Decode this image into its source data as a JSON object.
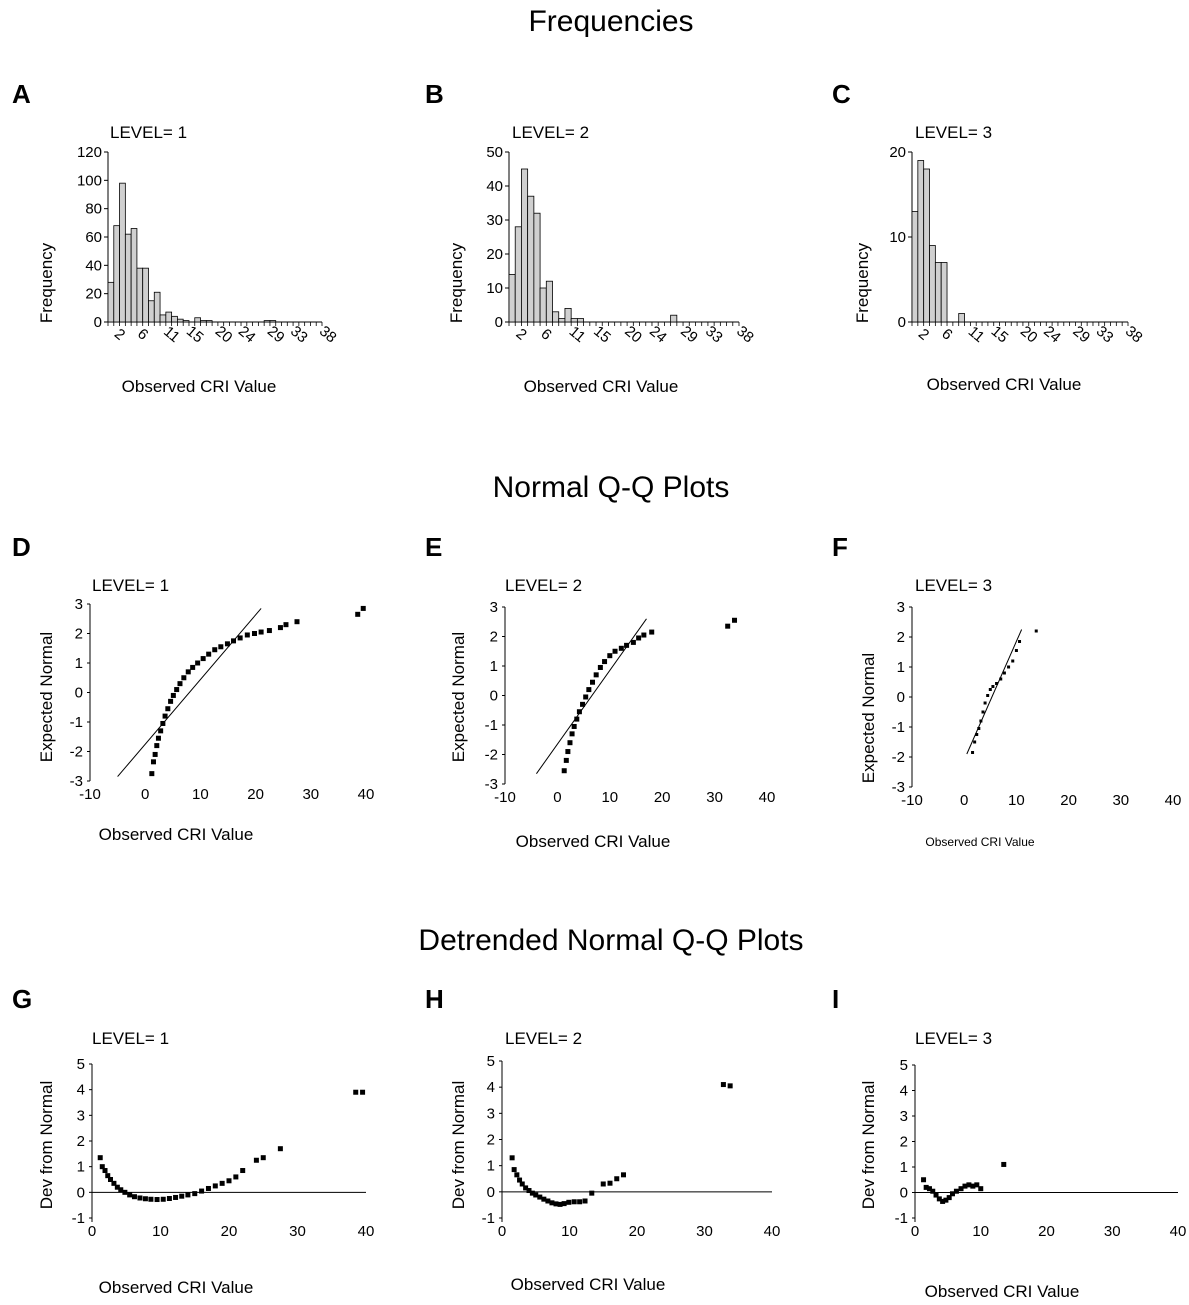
{
  "sections": [
    {
      "title": "Frequencies"
    },
    {
      "title": "Normal Q-Q Plots"
    },
    {
      "title": "Detrended Normal Q-Q Plots"
    }
  ],
  "chart_data": [
    {
      "panel": "A",
      "type": "bar",
      "level_label": "LEVEL= 1",
      "xlabel": "Observed CRI Value",
      "ylabel": "Frequency",
      "x_tick_labels": [
        "2",
        "6",
        "11",
        "15",
        "20",
        "24",
        "29",
        "33",
        "38"
      ],
      "y_ticks": [
        0,
        20,
        40,
        60,
        80,
        100,
        120
      ],
      "ylim": [
        0,
        120
      ],
      "values": [
        28,
        68,
        98,
        62,
        66,
        38,
        38,
        15,
        21,
        5,
        7,
        4,
        2,
        1,
        0,
        3,
        1,
        1,
        0,
        0,
        0,
        0,
        0,
        0,
        0,
        0,
        0,
        1,
        1
      ]
    },
    {
      "panel": "B",
      "type": "bar",
      "level_label": "LEVEL= 2",
      "xlabel": "Observed CRI Value",
      "ylabel": "Frequency",
      "x_tick_labels": [
        "2",
        "6",
        "11",
        "15",
        "20",
        "24",
        "29",
        "33",
        "38"
      ],
      "y_ticks": [
        0,
        10,
        20,
        30,
        40,
        50
      ],
      "ylim": [
        0,
        50
      ],
      "values": [
        14,
        28,
        45,
        37,
        32,
        10,
        12,
        3,
        1,
        4,
        1,
        1,
        0,
        0,
        0,
        0,
        0,
        0,
        0,
        0,
        0,
        0,
        0,
        0,
        0,
        0,
        2,
        0,
        0,
        0,
        0,
        0,
        0
      ]
    },
    {
      "panel": "C",
      "type": "bar",
      "level_label": "LEVEL= 3",
      "xlabel": "Observed CRI Value",
      "ylabel": "Frequency",
      "x_tick_labels": [
        "2",
        "6",
        "11",
        "15",
        "20",
        "24",
        "29",
        "33",
        "38"
      ],
      "y_ticks": [
        0,
        10,
        20
      ],
      "ylim": [
        0,
        20
      ],
      "values": [
        13,
        19,
        18,
        9,
        7,
        7,
        0,
        0,
        1,
        0,
        0,
        0,
        0,
        0,
        0,
        0,
        0,
        0,
        0,
        0,
        0,
        0,
        0,
        0,
        0,
        0,
        0,
        0,
        0,
        0,
        0,
        0,
        0
      ]
    },
    {
      "panel": "D",
      "type": "scatter",
      "level_label": "LEVEL= 1",
      "xlabel": "Observed CRI Value",
      "ylabel": "Expected Normal",
      "x_ticks": [
        -10,
        0,
        10,
        20,
        30,
        40
      ],
      "y_ticks": [
        -3,
        -2,
        -1,
        0,
        1,
        2,
        3
      ],
      "xlim": [
        -10,
        40
      ],
      "ylim": [
        -3,
        3
      ],
      "reference_line": [
        [
          -5,
          -2.85
        ],
        [
          21,
          2.85
        ]
      ],
      "points": [
        [
          1.2,
          -2.75
        ],
        [
          1.5,
          -2.35
        ],
        [
          1.8,
          -2.1
        ],
        [
          2.1,
          -1.8
        ],
        [
          2.4,
          -1.55
        ],
        [
          2.8,
          -1.3
        ],
        [
          3.2,
          -1.05
        ],
        [
          3.6,
          -0.8
        ],
        [
          4.1,
          -0.55
        ],
        [
          4.6,
          -0.3
        ],
        [
          5.1,
          -0.1
        ],
        [
          5.7,
          0.1
        ],
        [
          6.3,
          0.3
        ],
        [
          7,
          0.5
        ],
        [
          7.8,
          0.7
        ],
        [
          8.6,
          0.85
        ],
        [
          9.5,
          1.0
        ],
        [
          10.5,
          1.15
        ],
        [
          11.5,
          1.3
        ],
        [
          12.6,
          1.45
        ],
        [
          13.7,
          1.55
        ],
        [
          14.9,
          1.65
        ],
        [
          16,
          1.75
        ],
        [
          17.2,
          1.85
        ],
        [
          18.5,
          1.95
        ],
        [
          19.8,
          2.0
        ],
        [
          21,
          2.05
        ],
        [
          22.5,
          2.1
        ],
        [
          24.5,
          2.2
        ],
        [
          25.5,
          2.3
        ],
        [
          27.5,
          2.4
        ],
        [
          38.5,
          2.65
        ],
        [
          39.5,
          2.85
        ]
      ]
    },
    {
      "panel": "E",
      "type": "scatter",
      "level_label": "LEVEL= 2",
      "xlabel": "Observed CRI Value",
      "ylabel": "Expected Normal",
      "x_ticks": [
        -10,
        0,
        10,
        20,
        30,
        40
      ],
      "y_ticks": [
        -3,
        -2,
        -1,
        0,
        1,
        2,
        3
      ],
      "xlim": [
        -10,
        40
      ],
      "ylim": [
        -3,
        3
      ],
      "reference_line": [
        [
          -4,
          -2.65
        ],
        [
          17,
          2.6
        ]
      ],
      "points": [
        [
          1.3,
          -2.55
        ],
        [
          1.7,
          -2.2
        ],
        [
          2,
          -1.9
        ],
        [
          2.4,
          -1.6
        ],
        [
          2.8,
          -1.3
        ],
        [
          3.2,
          -1.05
        ],
        [
          3.7,
          -0.8
        ],
        [
          4.2,
          -0.55
        ],
        [
          4.8,
          -0.3
        ],
        [
          5.4,
          -0.05
        ],
        [
          6,
          0.2
        ],
        [
          6.7,
          0.45
        ],
        [
          7.4,
          0.7
        ],
        [
          8.2,
          0.95
        ],
        [
          9,
          1.15
        ],
        [
          10,
          1.35
        ],
        [
          11,
          1.5
        ],
        [
          12.2,
          1.6
        ],
        [
          13.2,
          1.7
        ],
        [
          14.5,
          1.8
        ],
        [
          15.5,
          1.95
        ],
        [
          16.5,
          2.05
        ],
        [
          18,
          2.15
        ],
        [
          32.5,
          2.35
        ],
        [
          33.8,
          2.55
        ]
      ]
    },
    {
      "panel": "F",
      "type": "scatter",
      "level_label": "LEVEL= 3",
      "xlabel": "Observed CRI Value",
      "ylabel": "Expected Normal",
      "x_ticks": [
        -10,
        0,
        10,
        20,
        30,
        40
      ],
      "y_ticks": [
        -3,
        -2,
        -1,
        0,
        1,
        2,
        3
      ],
      "xlim": [
        -10,
        40
      ],
      "ylim": [
        -3,
        3
      ],
      "reference_line": [
        [
          0.5,
          -1.9
        ],
        [
          11,
          2.25
        ]
      ],
      "points": [
        [
          1.6,
          -1.85
        ],
        [
          2,
          -1.5
        ],
        [
          2.4,
          -1.25
        ],
        [
          2.8,
          -1.05
        ],
        [
          3.2,
          -0.8
        ],
        [
          3.6,
          -0.5
        ],
        [
          4,
          -0.2
        ],
        [
          4.5,
          0.05
        ],
        [
          5,
          0.25
        ],
        [
          5.5,
          0.35
        ],
        [
          6.2,
          0.45
        ],
        [
          7,
          0.6
        ],
        [
          7.7,
          0.8
        ],
        [
          8.5,
          1.0
        ],
        [
          9.3,
          1.2
        ],
        [
          10,
          1.55
        ],
        [
          10.6,
          1.85
        ],
        [
          13.8,
          2.2
        ]
      ]
    },
    {
      "panel": "G",
      "type": "scatter",
      "level_label": "LEVEL= 1",
      "xlabel": "Observed CRI Value",
      "ylabel": "Dev from Normal",
      "x_ticks": [
        0,
        10,
        20,
        30,
        40
      ],
      "y_ticks": [
        -1,
        0,
        1,
        2,
        3,
        4,
        5
      ],
      "xlim": [
        0,
        40
      ],
      "ylim": [
        -1,
        5
      ],
      "reference_y": 0,
      "points": [
        [
          1.2,
          1.35
        ],
        [
          1.5,
          1.0
        ],
        [
          1.9,
          0.85
        ],
        [
          2.3,
          0.65
        ],
        [
          2.7,
          0.5
        ],
        [
          3.2,
          0.35
        ],
        [
          3.7,
          0.2
        ],
        [
          4.2,
          0.1
        ],
        [
          4.8,
          0.0
        ],
        [
          5.5,
          -0.1
        ],
        [
          6.2,
          -0.17
        ],
        [
          7,
          -0.22
        ],
        [
          7.8,
          -0.25
        ],
        [
          8.6,
          -0.27
        ],
        [
          9.5,
          -0.28
        ],
        [
          10.4,
          -0.27
        ],
        [
          11.3,
          -0.24
        ],
        [
          12.2,
          -0.2
        ],
        [
          13.1,
          -0.15
        ],
        [
          14,
          -0.1
        ],
        [
          15,
          -0.05
        ],
        [
          16,
          0.05
        ],
        [
          17,
          0.15
        ],
        [
          18,
          0.25
        ],
        [
          19,
          0.35
        ],
        [
          20,
          0.45
        ],
        [
          21,
          0.6
        ],
        [
          22,
          0.85
        ],
        [
          24,
          1.25
        ],
        [
          25,
          1.35
        ],
        [
          27.5,
          1.7
        ],
        [
          38.5,
          3.9
        ],
        [
          39.5,
          3.9
        ]
      ]
    },
    {
      "panel": "H",
      "type": "scatter",
      "level_label": "LEVEL= 2",
      "xlabel": "Observed CRI Value",
      "ylabel": "Dev from Normal",
      "x_ticks": [
        0,
        10,
        20,
        30,
        40
      ],
      "y_ticks": [
        -1,
        0,
        1,
        2,
        3,
        4,
        5
      ],
      "xlim": [
        0,
        40
      ],
      "ylim": [
        -1,
        5
      ],
      "reference_y": 0,
      "points": [
        [
          1.5,
          1.3
        ],
        [
          1.8,
          0.85
        ],
        [
          2.2,
          0.65
        ],
        [
          2.6,
          0.45
        ],
        [
          3,
          0.3
        ],
        [
          3.5,
          0.15
        ],
        [
          4,
          0.05
        ],
        [
          4.5,
          -0.05
        ],
        [
          5,
          -0.12
        ],
        [
          5.6,
          -0.2
        ],
        [
          6.2,
          -0.28
        ],
        [
          6.8,
          -0.35
        ],
        [
          7.4,
          -0.42
        ],
        [
          8,
          -0.46
        ],
        [
          8.6,
          -0.48
        ],
        [
          9.2,
          -0.45
        ],
        [
          9.9,
          -0.4
        ],
        [
          10.7,
          -0.38
        ],
        [
          11.5,
          -0.38
        ],
        [
          12.3,
          -0.35
        ],
        [
          13.3,
          -0.05
        ],
        [
          15,
          0.3
        ],
        [
          16,
          0.33
        ],
        [
          17,
          0.5
        ],
        [
          18,
          0.65
        ],
        [
          32.8,
          4.1
        ],
        [
          33.8,
          4.05
        ]
      ]
    },
    {
      "panel": "I",
      "type": "scatter",
      "level_label": "LEVEL= 3",
      "xlabel": "Observed CRI Value",
      "ylabel": "Dev from Normal",
      "x_ticks": [
        0,
        10,
        20,
        30,
        40
      ],
      "y_ticks": [
        -1,
        0,
        1,
        2,
        3,
        4,
        5
      ],
      "xlim": [
        0,
        40
      ],
      "ylim": [
        -1,
        5
      ],
      "reference_y": 0,
      "points": [
        [
          1.3,
          0.5
        ],
        [
          1.7,
          0.2
        ],
        [
          2.2,
          0.15
        ],
        [
          2.7,
          0.05
        ],
        [
          3.2,
          -0.1
        ],
        [
          3.7,
          -0.25
        ],
        [
          4.2,
          -0.35
        ],
        [
          4.7,
          -0.3
        ],
        [
          5.2,
          -0.2
        ],
        [
          5.7,
          -0.05
        ],
        [
          6.3,
          0.05
        ],
        [
          7,
          0.15
        ],
        [
          7.6,
          0.25
        ],
        [
          8.2,
          0.3
        ],
        [
          8.8,
          0.25
        ],
        [
          9.4,
          0.3
        ],
        [
          10,
          0.15
        ],
        [
          13.5,
          1.1
        ]
      ]
    }
  ]
}
